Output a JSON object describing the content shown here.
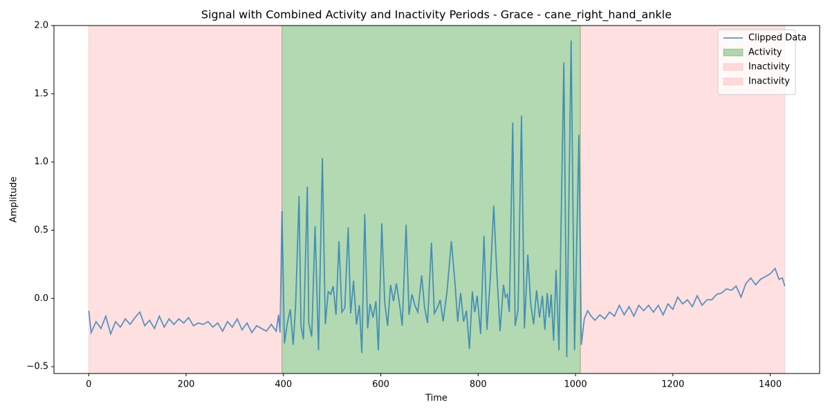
{
  "chart_data": {
    "type": "line",
    "title": "Signal with Combined Activity and Inactivity Periods - Grace - cane_right_hand_ankle",
    "x_label": "Time",
    "y_label": "Amplitude",
    "xlim": [
      -71.5,
      1501.5
    ],
    "ylim": [
      -0.55,
      2.0
    ],
    "xticks": [
      0,
      200,
      400,
      600,
      800,
      1000,
      1200,
      1400
    ],
    "yticks": [
      {
        "value": -0.5,
        "label": "−0.5"
      },
      {
        "value": 0,
        "label": "0.0"
      },
      0.5,
      {
        "value": 1,
        "label": "1.0"
      },
      1.5,
      {
        "value": 2,
        "label": "2.0"
      }
    ],
    "legend": "upper right",
    "spans": [
      {
        "name": "Activity",
        "start": 397,
        "end": 1010,
        "color": "#008000"
      },
      {
        "name": "Inactivity",
        "start": 0,
        "end": 397,
        "color": "#ff0000"
      },
      {
        "name": "Inactivity",
        "start": 1010,
        "end": 1430,
        "color": "#ff0000"
      }
    ],
    "series": [
      {
        "name": "Clipped Data",
        "color": "#1f77b4",
        "x": [
          0,
          5,
          15,
          25,
          35,
          45,
          55,
          65,
          75,
          85,
          95,
          105,
          115,
          125,
          135,
          145,
          155,
          165,
          175,
          185,
          195,
          205,
          215,
          225,
          235,
          245,
          255,
          265,
          275,
          285,
          295,
          305,
          315,
          325,
          335,
          345,
          355,
          365,
          375,
          385,
          390,
          393,
          397,
          402,
          408,
          414,
          420,
          425,
          432,
          436,
          441,
          449,
          452,
          458,
          465,
          472,
          480,
          486,
          492,
          497,
          502,
          508,
          514,
          520,
          526,
          533,
          538,
          544,
          550,
          556,
          561,
          567,
          573,
          578,
          584,
          590,
          595,
          602,
          608,
          614,
          620,
          626,
          632,
          638,
          644,
          652,
          658,
          664,
          670,
          676,
          684,
          690,
          696,
          704,
          710,
          716,
          722,
          728,
          736,
          745,
          752,
          758,
          764,
          770,
          776,
          782,
          788,
          793,
          798,
          805,
          812,
          818,
          825,
          832,
          838,
          845,
          852,
          856,
          860,
          864,
          871,
          876,
          882,
          889,
          895,
          902,
          908,
          914,
          920,
          926,
          932,
          937,
          942,
          946,
          950,
          955,
          960,
          966,
          976,
          982,
          991,
          998,
          1007,
          1012,
          1018,
          1025,
          1032,
          1040,
          1050,
          1060,
          1070,
          1080,
          1090,
          1100,
          1110,
          1120,
          1130,
          1140,
          1150,
          1160,
          1170,
          1180,
          1190,
          1200,
          1210,
          1220,
          1230,
          1240,
          1250,
          1260,
          1270,
          1280,
          1290,
          1300,
          1310,
          1320,
          1330,
          1340,
          1350,
          1360,
          1370,
          1380,
          1390,
          1400,
          1410,
          1418,
          1425,
          1430
        ],
        "values": [
          -0.09,
          -0.25,
          -0.17,
          -0.22,
          -0.13,
          -0.26,
          -0.17,
          -0.21,
          -0.15,
          -0.19,
          -0.14,
          -0.1,
          -0.2,
          -0.16,
          -0.22,
          -0.13,
          -0.21,
          -0.15,
          -0.19,
          -0.15,
          -0.18,
          -0.14,
          -0.2,
          -0.18,
          -0.19,
          -0.17,
          -0.21,
          -0.18,
          -0.24,
          -0.17,
          -0.21,
          -0.15,
          -0.23,
          -0.18,
          -0.25,
          -0.2,
          -0.22,
          -0.24,
          -0.19,
          -0.24,
          -0.12,
          -0.25,
          0.64,
          -0.33,
          -0.18,
          -0.08,
          -0.34,
          -0.05,
          0.75,
          -0.2,
          -0.3,
          0.82,
          -0.18,
          -0.28,
          0.53,
          -0.38,
          1.03,
          -0.19,
          0.05,
          0.03,
          0.09,
          -0.12,
          0.42,
          -0.1,
          -0.07,
          0.52,
          -0.11,
          0.13,
          -0.19,
          -0.05,
          -0.4,
          0.62,
          -0.22,
          -0.04,
          -0.14,
          -0.02,
          -0.38,
          0.55,
          -0.03,
          -0.2,
          0.1,
          -0.02,
          0.11,
          -0.03,
          -0.2,
          0.54,
          -0.12,
          0.03,
          -0.05,
          -0.1,
          0.17,
          -0.07,
          -0.18,
          0.41,
          -0.11,
          -0.07,
          -0.01,
          -0.17,
          0.05,
          0.42,
          0.13,
          -0.17,
          0.04,
          -0.17,
          -0.09,
          -0.37,
          0.05,
          -0.1,
          0.02,
          -0.26,
          0.46,
          -0.23,
          0.15,
          0.68,
          0.21,
          -0.24,
          0.1,
          0.01,
          0.03,
          -0.1,
          1.29,
          -0.2,
          -0.08,
          1.34,
          -0.22,
          0.32,
          -0.04,
          -0.19,
          0.06,
          -0.14,
          0.02,
          -0.23,
          0.04,
          -0.14,
          0.03,
          -0.31,
          0.21,
          -0.38,
          1.73,
          -0.43,
          1.89,
          -0.38,
          1.2,
          -0.34,
          -0.15,
          -0.09,
          -0.13,
          -0.16,
          -0.12,
          -0.15,
          -0.1,
          -0.13,
          -0.05,
          -0.12,
          -0.06,
          -0.13,
          -0.05,
          -0.09,
          -0.05,
          -0.1,
          -0.05,
          -0.12,
          -0.04,
          -0.08,
          0.01,
          -0.04,
          -0.01,
          -0.06,
          0.02,
          -0.05,
          -0.01,
          -0.01,
          0.03,
          0.04,
          0.07,
          0.06,
          0.09,
          0.01,
          0.11,
          0.15,
          0.1,
          0.14,
          0.16,
          0.18,
          0.22,
          0.14,
          0.15,
          0.09
        ]
      }
    ]
  }
}
